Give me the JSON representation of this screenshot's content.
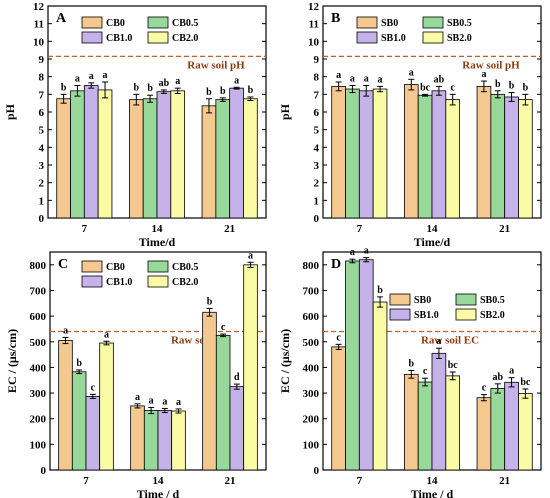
{
  "colors": {
    "s0": "#F5C890",
    "s05": "#98D89A",
    "s1": "#C4B2E8",
    "s2": "#FBFBA6",
    "raw_line": "#B8632C",
    "raw_text": "#8B3A0E"
  },
  "chart_data": [
    {
      "panel": "A",
      "type": "bar",
      "categories": [
        "7",
        "14",
        "21"
      ],
      "xlabel": "Time/d",
      "ylabel": "pH",
      "ylim": [
        0,
        12
      ],
      "yticks": [
        0,
        1,
        2,
        3,
        4,
        5,
        6,
        7,
        8,
        9,
        10,
        11,
        12
      ],
      "grid": false,
      "legend_position": "top-left",
      "reference": {
        "label": "Raw soil pH",
        "value": 9.15
      },
      "series": [
        {
          "name": "CB0",
          "color_key": "s0",
          "values": [
            6.75,
            6.7,
            6.35
          ],
          "errors": [
            0.25,
            0.3,
            0.4
          ],
          "labels": [
            "b",
            "b",
            "b"
          ]
        },
        {
          "name": "CB0.5",
          "color_key": "s05",
          "values": [
            7.2,
            6.75,
            6.7
          ],
          "errors": [
            0.3,
            0.2,
            0.1
          ],
          "labels": [
            "a",
            "b",
            "b"
          ]
        },
        {
          "name": "CB1.0",
          "color_key": "s1",
          "values": [
            7.5,
            7.15,
            7.35
          ],
          "errors": [
            0.15,
            0.1,
            0.05
          ],
          "labels": [
            "a",
            "ab",
            "a"
          ]
        },
        {
          "name": "CB2.0",
          "color_key": "s2",
          "values": [
            7.25,
            7.2,
            6.75
          ],
          "errors": [
            0.45,
            0.15,
            0.1
          ],
          "labels": [
            "a",
            "a",
            "b"
          ]
        }
      ]
    },
    {
      "panel": "B",
      "type": "bar",
      "categories": [
        "7",
        "14",
        "21"
      ],
      "xlabel": "Time/d",
      "ylabel": "pH",
      "ylim": [
        0,
        12
      ],
      "yticks": [
        0,
        1,
        2,
        3,
        4,
        5,
        6,
        7,
        8,
        9,
        10,
        11,
        12
      ],
      "grid": false,
      "legend_position": "top-left",
      "reference": {
        "label": "Raw soil pH",
        "value": 9.15
      },
      "series": [
        {
          "name": "SB0",
          "color_key": "s0",
          "values": [
            7.45,
            7.55,
            7.45
          ],
          "errors": [
            0.25,
            0.3,
            0.3
          ],
          "labels": [
            "a",
            "a",
            "a"
          ]
        },
        {
          "name": "SB0.5",
          "color_key": "s05",
          "values": [
            7.3,
            6.95,
            7.0
          ],
          "errors": [
            0.2,
            0.05,
            0.2
          ],
          "labels": [
            "a",
            "bc",
            "b"
          ]
        },
        {
          "name": "SB1.0",
          "color_key": "s1",
          "values": [
            7.2,
            7.2,
            6.85
          ],
          "errors": [
            0.3,
            0.25,
            0.25
          ],
          "labels": [
            "a",
            "ab",
            "b"
          ]
        },
        {
          "name": "SB2.0",
          "color_key": "s2",
          "values": [
            7.3,
            6.7,
            6.7
          ],
          "errors": [
            0.15,
            0.3,
            0.3
          ],
          "labels": [
            "a",
            "c",
            "b"
          ]
        }
      ]
    },
    {
      "panel": "C",
      "type": "bar",
      "categories": [
        "7",
        "14",
        "21"
      ],
      "xlabel": "Time / d",
      "ylabel": "EC / (μs/cm)",
      "ylim": [
        0,
        850
      ],
      "yticks": [
        0,
        100,
        200,
        300,
        400,
        500,
        600,
        700,
        800
      ],
      "grid": false,
      "legend_position": "top-left",
      "reference": {
        "label": "Raw soil EC",
        "value": 540
      },
      "series": [
        {
          "name": "CB0",
          "color_key": "s0",
          "values": [
            505,
            250,
            615
          ],
          "errors": [
            12,
            8,
            15
          ],
          "labels": [
            "a",
            "a",
            "b"
          ]
        },
        {
          "name": "CB0.5",
          "color_key": "s05",
          "values": [
            383,
            232,
            525
          ],
          "errors": [
            7,
            12,
            5
          ],
          "labels": [
            "b",
            "a",
            "c"
          ]
        },
        {
          "name": "CB1.0",
          "color_key": "s1",
          "values": [
            287,
            232,
            325
          ],
          "errors": [
            8,
            8,
            10
          ],
          "labels": [
            "c",
            "a",
            "d"
          ]
        },
        {
          "name": "CB2.0",
          "color_key": "s2",
          "values": [
            495,
            230,
            800
          ],
          "errors": [
            7,
            8,
            10
          ],
          "labels": [
            "a",
            "a",
            "a"
          ]
        }
      ]
    },
    {
      "panel": "D",
      "type": "bar",
      "categories": [
        "7",
        "14",
        "21"
      ],
      "xlabel": "Time / d",
      "ylabel": "EC / (μs/cm)",
      "ylim": [
        0,
        850
      ],
      "yticks": [
        0,
        100,
        200,
        300,
        400,
        500,
        600,
        700,
        800
      ],
      "grid": false,
      "legend_position": "top-right",
      "reference": {
        "label": "Raw soil EC",
        "value": 540
      },
      "series": [
        {
          "name": "SB0",
          "color_key": "s0",
          "values": [
            480,
            373,
            282
          ],
          "errors": [
            10,
            15,
            12
          ],
          "labels": [
            "c",
            "b",
            "c"
          ]
        },
        {
          "name": "SB0.5",
          "color_key": "s05",
          "values": [
            815,
            343,
            318
          ],
          "errors": [
            7,
            15,
            18
          ],
          "labels": [
            "a",
            "c",
            "ab"
          ]
        },
        {
          "name": "SB1.0",
          "color_key": "s1",
          "values": [
            820,
            455,
            342
          ],
          "errors": [
            8,
            20,
            18
          ],
          "labels": [
            "a",
            "a",
            "a"
          ]
        },
        {
          "name": "SB2.0",
          "color_key": "s2",
          "values": [
            655,
            367,
            298
          ],
          "errors": [
            20,
            15,
            18
          ],
          "labels": [
            "b",
            "bc",
            "bc"
          ]
        }
      ]
    }
  ]
}
